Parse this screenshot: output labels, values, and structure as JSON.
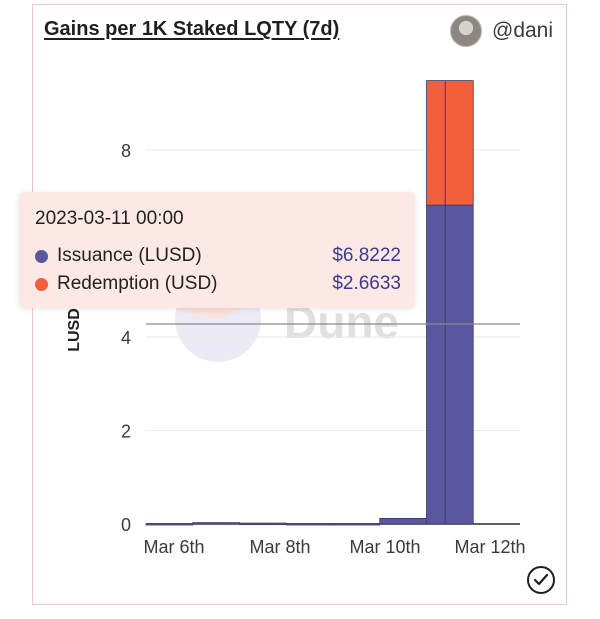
{
  "header": {
    "title": "Gains per 1K Staked LQTY (7d)",
    "author": "@dani"
  },
  "watermark": "Dune",
  "tooltip": {
    "title": "2023-03-11 00:00",
    "rows": [
      {
        "label": "Issuance (LUSD)",
        "value": "$6.8222",
        "color": "#5a56a0"
      },
      {
        "label": "Redemption (USD)",
        "value": "$2.6633",
        "color": "#f25f3d"
      }
    ]
  },
  "icons": {
    "author": "avatar-icon",
    "status": "check-circle-icon"
  },
  "chart_data": {
    "type": "bar",
    "stacked": true,
    "ylabel": "LUSD",
    "xlabel": "",
    "ylim": [
      0,
      10
    ],
    "yticks": [
      0,
      2,
      4,
      8
    ],
    "xticks": [
      "Mar 6th",
      "Mar 8th",
      "Mar 10th",
      "Mar 12th"
    ],
    "grid": true,
    "categories": [
      "2023-03-05",
      "2023-03-06",
      "2023-03-07",
      "2023-03-08",
      "2023-03-09",
      "2023-03-10",
      "2023-03-11",
      "2023-03-12"
    ],
    "series": [
      {
        "name": "Issuance (LUSD)",
        "color": "#5a56a0",
        "values": [
          0.01,
          0.03,
          0.02,
          0.01,
          0.01,
          0.12,
          6.8222,
          0.0
        ]
      },
      {
        "name": "Redemption (USD)",
        "color": "#f25f3d",
        "values": [
          0.0,
          0.0,
          0.0,
          0.0,
          0.0,
          0.0,
          2.6633,
          0.0
        ]
      }
    ]
  }
}
